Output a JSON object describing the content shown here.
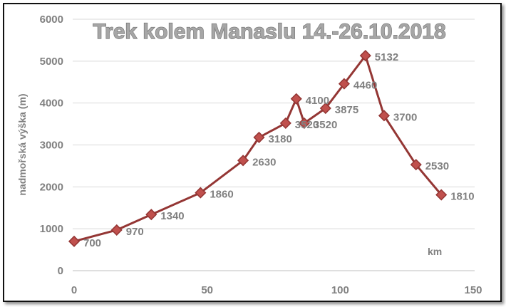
{
  "chart_data": {
    "type": "line",
    "title": "Trek kolem Manaslu 14.-26.10.2018",
    "xlabel": "km",
    "ylabel": "nadmořská výška (m)",
    "xlim": [
      0,
      150
    ],
    "ylim": [
      0,
      6000
    ],
    "xticks": [
      "0",
      "50",
      "100",
      "150"
    ],
    "yticks": [
      "0",
      "1000",
      "2000",
      "3000",
      "4000",
      "5000",
      "6000"
    ],
    "grid": "horizontal",
    "legend": "none",
    "series": [
      {
        "color": "#943634",
        "marker": "diamond",
        "x": [
          0,
          16,
          29,
          47.5,
          63.5,
          69.5,
          79.5,
          83.5,
          86.5,
          94.5,
          101.5,
          109.5,
          116.5,
          128.5,
          138
        ],
        "y": [
          700,
          970,
          1340,
          1860,
          2630,
          3180,
          3520,
          4100,
          3520,
          3875,
          4460,
          5132,
          3700,
          2530,
          1810
        ],
        "labels": [
          "700",
          "970",
          "1340",
          "1860",
          "2630",
          "3180",
          "3520",
          "4100",
          "3520",
          "3875",
          "4460",
          "5132",
          "3700",
          "2530",
          "1810"
        ]
      }
    ]
  }
}
